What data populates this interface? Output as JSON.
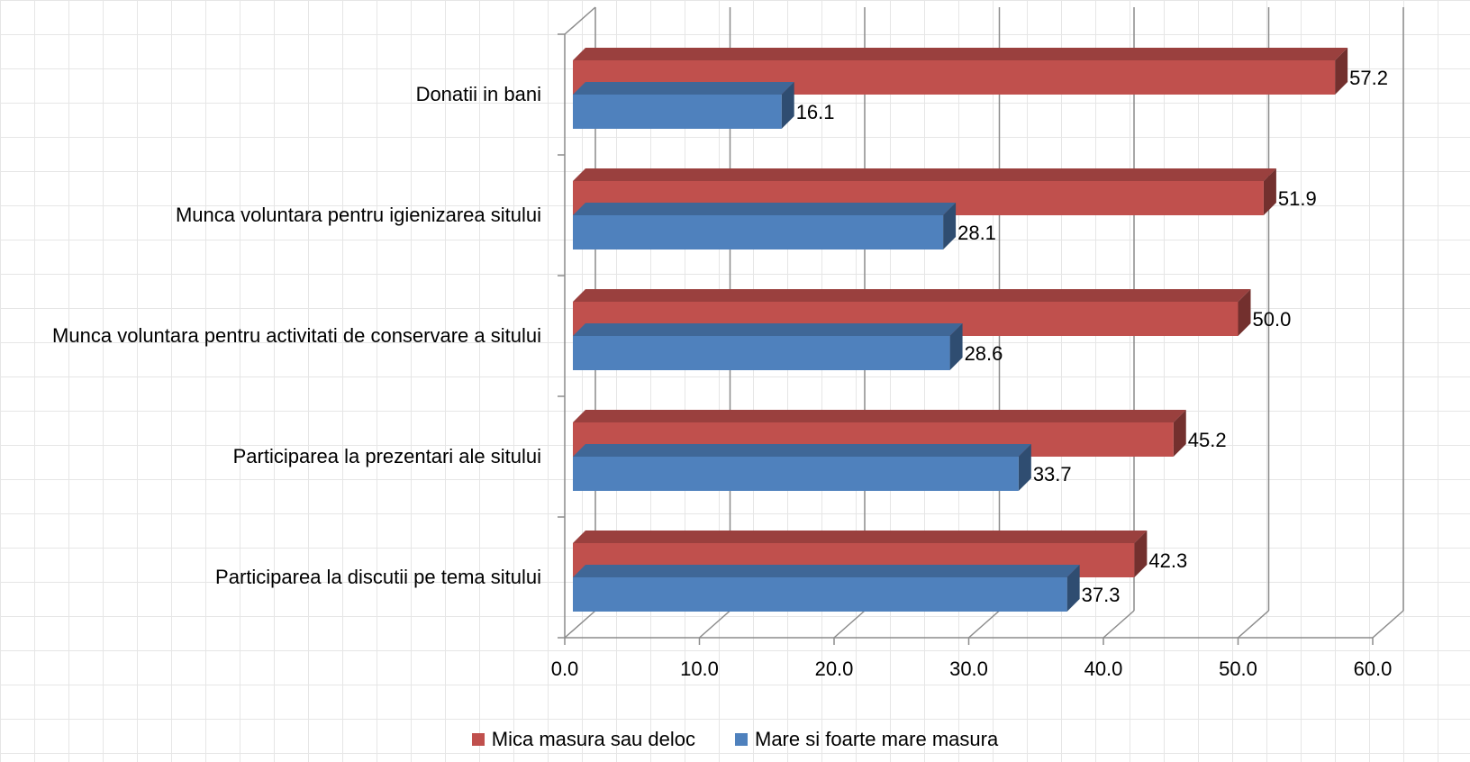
{
  "chart_data": {
    "type": "bar",
    "orientation": "horizontal",
    "style": "3d",
    "categories": [
      "Donatii in bani",
      "Munca voluntara pentru igienizarea sitului",
      "Munca voluntara pentru activitati de conservare a sitului",
      "Participarea la prezentari ale sitului",
      "Participarea la discutii pe tema sitului"
    ],
    "series": [
      {
        "name": "Mica masura sau deloc",
        "values": [
          57.2,
          51.9,
          50.0,
          45.2,
          42.3
        ],
        "color": "#C0504D"
      },
      {
        "name": "Mare si foarte mare masura",
        "values": [
          16.1,
          28.1,
          28.6,
          33.7,
          37.3
        ],
        "color": "#4F81BD"
      }
    ],
    "xlim": [
      0,
      60
    ],
    "xticks": [
      "0.0",
      "10.0",
      "20.0",
      "30.0",
      "40.0",
      "50.0",
      "60.0"
    ],
    "grid": true,
    "legend_position": "bottom"
  }
}
